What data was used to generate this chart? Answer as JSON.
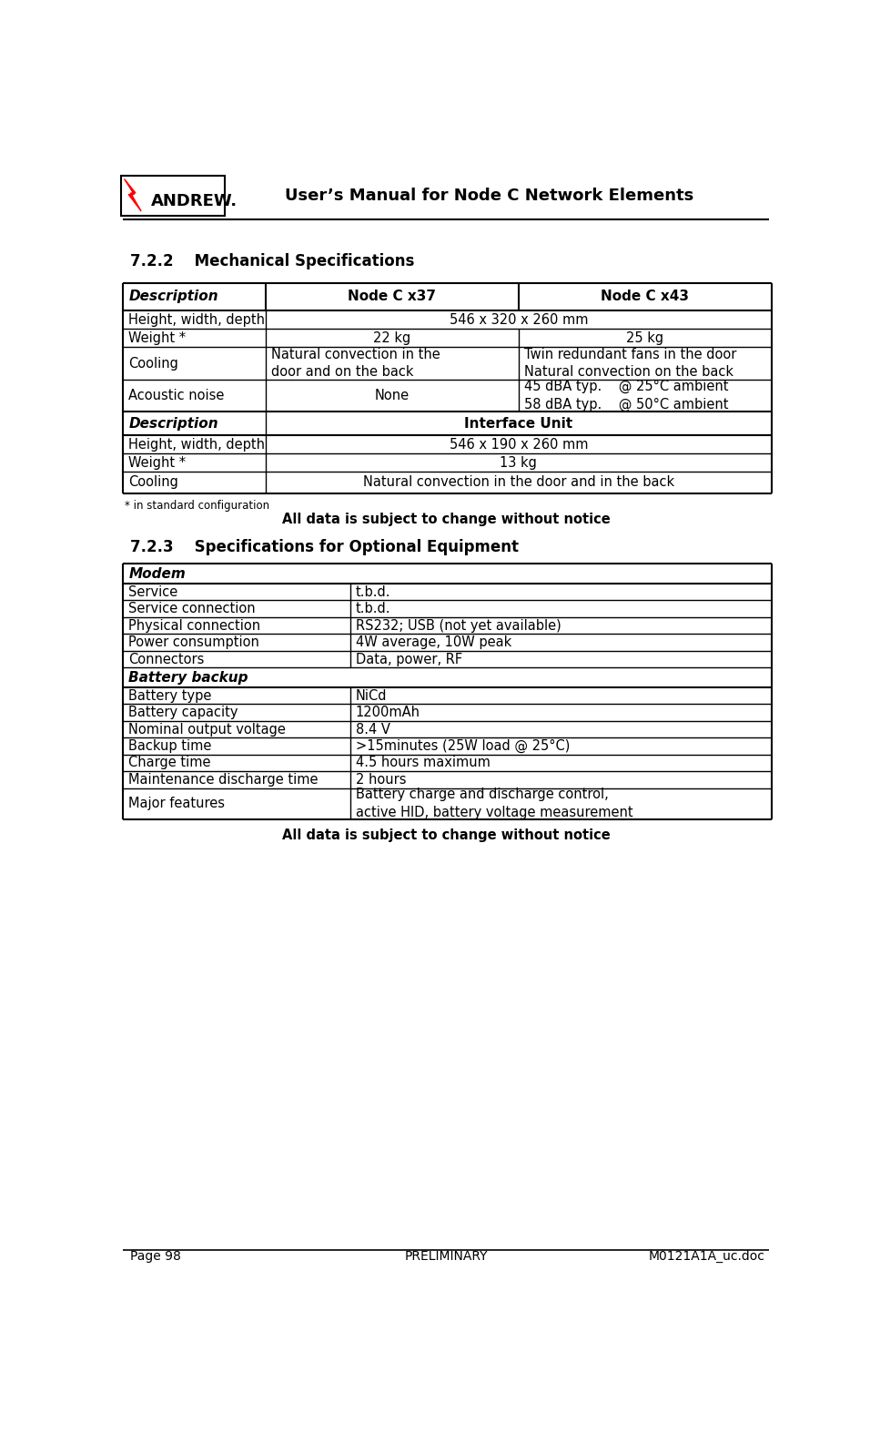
{
  "header_title": "User’s Manual for Node C Network Elements",
  "section1_title": "7.2.2    Mechanical Specifications",
  "section2_title": "7.2.3    Specifications for Optional Equipment",
  "footer_left": "Page 98",
  "footer_center": "PRELIMINARY",
  "footer_right": "M0121A1A_uc.doc",
  "note1": "* in standard configuration",
  "note2_center": "All data is subject to change without notice",
  "background_color": "#ffffff"
}
